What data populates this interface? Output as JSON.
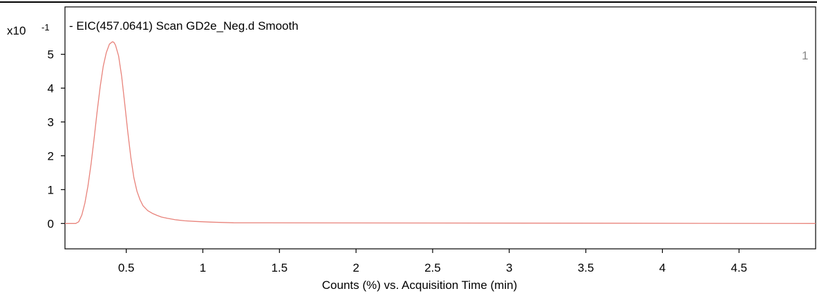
{
  "chart_data": {
    "type": "line",
    "title": "- EIC(457.0641) Scan GD2e_Neg.d  Smooth",
    "y_scale_prefix": "x10",
    "y_scale_exponent": "-1",
    "xlabel": "Counts (%) vs. Acquisition Time (min)",
    "ylabel": "",
    "xlim": [
      0.1,
      5.0
    ],
    "ylim": [
      -0.75,
      6.4
    ],
    "x_ticks": [
      0.5,
      1,
      1.5,
      2,
      2.5,
      3,
      3.5,
      4,
      4.5
    ],
    "x_tick_labels": [
      "0.5",
      "1",
      "1.5",
      "2",
      "2.5",
      "3",
      "3.5",
      "4",
      "4.5"
    ],
    "y_ticks": [
      0,
      1,
      2,
      3,
      4,
      5
    ],
    "y_tick_labels": [
      "0",
      "1",
      "2",
      "3",
      "4",
      "5"
    ],
    "grid": false,
    "peak_label": "1",
    "line_color": "#e8827a",
    "series": [
      {
        "x": [
          0.1,
          0.17,
          0.19,
          0.21,
          0.23,
          0.25,
          0.27,
          0.29,
          0.31,
          0.33,
          0.35,
          0.37,
          0.39,
          0.41,
          0.42,
          0.43,
          0.45,
          0.47,
          0.49,
          0.51,
          0.53,
          0.55,
          0.57,
          0.59,
          0.61,
          0.64,
          0.67,
          0.7,
          0.73,
          0.77,
          0.82,
          0.88,
          0.95,
          1.05,
          1.2,
          5.0
        ],
        "values": [
          0,
          0,
          0.05,
          0.25,
          0.6,
          1.1,
          1.75,
          2.5,
          3.3,
          4.05,
          4.65,
          5.05,
          5.3,
          5.37,
          5.35,
          5.27,
          4.95,
          4.35,
          3.55,
          2.7,
          1.95,
          1.35,
          0.95,
          0.7,
          0.52,
          0.38,
          0.3,
          0.24,
          0.19,
          0.15,
          0.11,
          0.08,
          0.06,
          0.04,
          0.02,
          0.0
        ]
      }
    ]
  }
}
